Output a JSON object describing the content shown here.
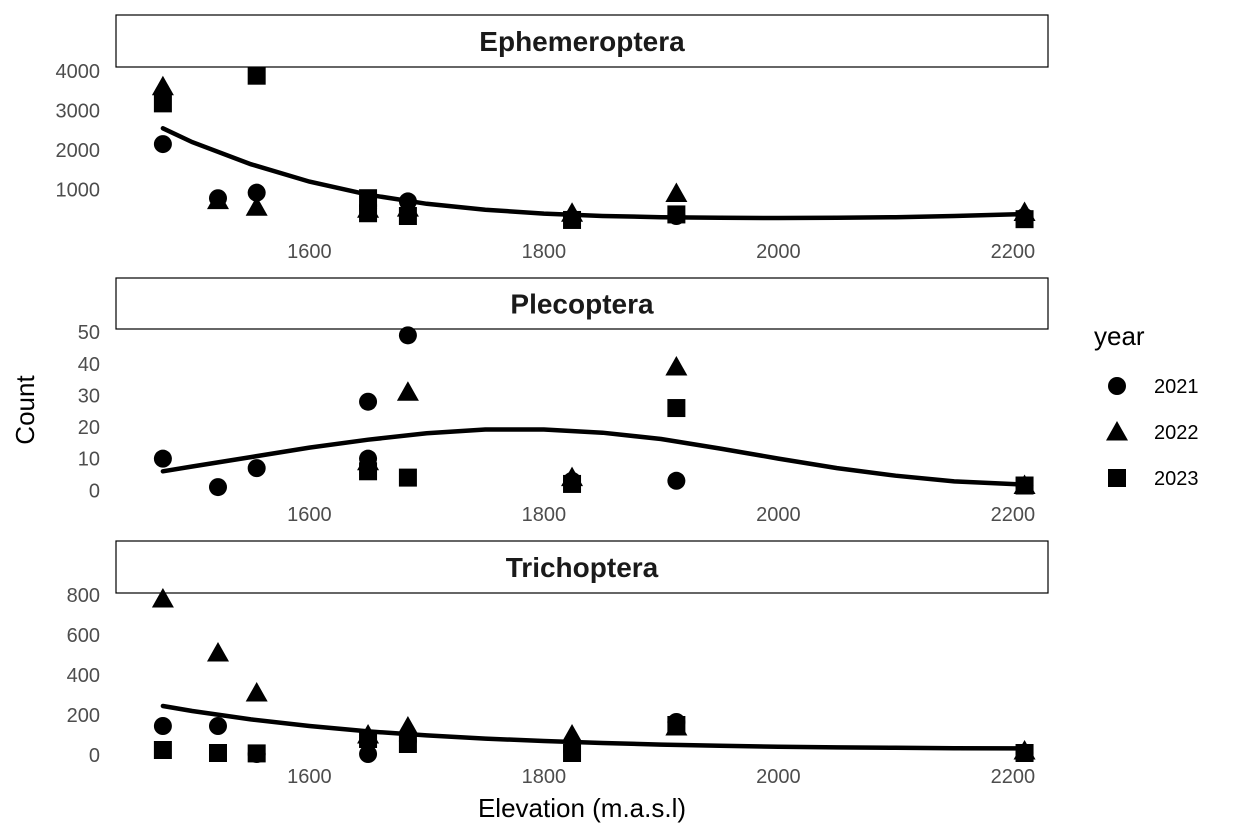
{
  "chart_data": {
    "type": "scatter",
    "xlabel": "Elevation (m.a.s.l)",
    "ylabel": "Count",
    "xlim": [
      1435,
      2230
    ],
    "x_ticks": [
      1600,
      1800,
      2000,
      2200
    ],
    "legend": {
      "title": "year",
      "placement": "right",
      "entries": [
        {
          "label": "2021",
          "shape": "circle"
        },
        {
          "label": "2022",
          "shape": "triangle"
        },
        {
          "label": "2023",
          "shape": "square"
        }
      ]
    },
    "panels": [
      {
        "title": "Ephemeroptera",
        "ylim": [
          -100,
          4100
        ],
        "y_ticks": [
          1000,
          2000,
          3000,
          4000
        ],
        "series": [
          {
            "name": "2021",
            "shape": "circle",
            "points": [
              [
                1475,
                2150
              ],
              [
                1522,
                780
              ],
              [
                1555,
                920
              ],
              [
                1650,
                520
              ],
              [
                1684,
                700
              ],
              [
                1824,
                270
              ],
              [
                1913,
                330
              ],
              [
                2210,
                310
              ]
            ]
          },
          {
            "name": "2022",
            "shape": "triangle",
            "points": [
              [
                1475,
                3600
              ],
              [
                1522,
                720
              ],
              [
                1555,
                550
              ],
              [
                1650,
                500
              ],
              [
                1684,
                530
              ],
              [
                1824,
                400
              ],
              [
                1913,
                900
              ],
              [
                2210,
                420
              ]
            ]
          },
          {
            "name": "2023",
            "shape": "square",
            "points": [
              [
                1475,
                3180
              ],
              [
                1555,
                3880
              ],
              [
                1650,
                780
              ],
              [
                1650,
                400
              ],
              [
                1684,
                330
              ],
              [
                1824,
                230
              ],
              [
                1913,
                370
              ],
              [
                2210,
                250
              ]
            ]
          }
        ],
        "trend": [
          [
            1475,
            2550
          ],
          [
            1500,
            2200
          ],
          [
            1550,
            1640
          ],
          [
            1600,
            1200
          ],
          [
            1650,
            870
          ],
          [
            1700,
            640
          ],
          [
            1750,
            490
          ],
          [
            1800,
            390
          ],
          [
            1850,
            330
          ],
          [
            1900,
            300
          ],
          [
            1950,
            285
          ],
          [
            2000,
            280
          ],
          [
            2050,
            285
          ],
          [
            2100,
            300
          ],
          [
            2150,
            330
          ],
          [
            2210,
            380
          ]
        ]
      },
      {
        "title": "Plecoptera",
        "ylim": [
          -1.5,
          51
        ],
        "y_ticks": [
          0,
          10,
          20,
          30,
          40,
          50
        ],
        "series": [
          {
            "name": "2021",
            "shape": "circle",
            "points": [
              [
                1475,
                10
              ],
              [
                1522,
                1
              ],
              [
                1555,
                7
              ],
              [
                1650,
                28
              ],
              [
                1650,
                10
              ],
              [
                1684,
                49
              ],
              [
                1824,
                3
              ],
              [
                1913,
                3
              ],
              [
                2210,
                1.5
              ]
            ]
          },
          {
            "name": "2022",
            "shape": "triangle",
            "points": [
              [
                1650,
                9
              ],
              [
                1684,
                31
              ],
              [
                1824,
                4
              ],
              [
                1913,
                39
              ],
              [
                2210,
                1.5
              ]
            ]
          },
          {
            "name": "2023",
            "shape": "square",
            "points": [
              [
                1650,
                6
              ],
              [
                1684,
                4
              ],
              [
                1824,
                2
              ],
              [
                1913,
                26
              ],
              [
                2210,
                1.5
              ]
            ]
          }
        ],
        "trend": [
          [
            1475,
            6
          ],
          [
            1500,
            7.5
          ],
          [
            1550,
            10.5
          ],
          [
            1600,
            13.5
          ],
          [
            1650,
            16
          ],
          [
            1700,
            18
          ],
          [
            1750,
            19.2
          ],
          [
            1800,
            19.2
          ],
          [
            1850,
            18.2
          ],
          [
            1900,
            16.2
          ],
          [
            1950,
            13.2
          ],
          [
            2000,
            10
          ],
          [
            2050,
            7
          ],
          [
            2100,
            4.6
          ],
          [
            2150,
            2.8
          ],
          [
            2210,
            1.8
          ]
        ]
      },
      {
        "title": "Trichoptera",
        "ylim": [
          -15,
          810
        ],
        "y_ticks": [
          0,
          200,
          400,
          600,
          800
        ],
        "series": [
          {
            "name": "2021",
            "shape": "circle",
            "points": [
              [
                1475,
                145
              ],
              [
                1522,
                145
              ],
              [
                1555,
                5
              ],
              [
                1650,
                5
              ],
              [
                1684,
                70
              ],
              [
                1824,
                20
              ],
              [
                1913,
                165
              ],
              [
                2210,
                10
              ]
            ]
          },
          {
            "name": "2022",
            "shape": "triangle",
            "points": [
              [
                1475,
                780
              ],
              [
                1522,
                510
              ],
              [
                1555,
                310
              ],
              [
                1650,
                100
              ],
              [
                1684,
                140
              ],
              [
                1824,
                100
              ],
              [
                1913,
                140
              ],
              [
                2210,
                20
              ]
            ]
          },
          {
            "name": "2023",
            "shape": "square",
            "points": [
              [
                1475,
                25
              ],
              [
                1522,
                10
              ],
              [
                1555,
                8
              ],
              [
                1650,
                80
              ],
              [
                1684,
                55
              ],
              [
                1824,
                10
              ],
              [
                1913,
                150
              ],
              [
                2210,
                10
              ]
            ]
          }
        ],
        "trend": [
          [
            1475,
            245
          ],
          [
            1500,
            220
          ],
          [
            1550,
            178
          ],
          [
            1600,
            145
          ],
          [
            1650,
            118
          ],
          [
            1700,
            98
          ],
          [
            1750,
            82
          ],
          [
            1800,
            70
          ],
          [
            1850,
            60
          ],
          [
            1900,
            52
          ],
          [
            1950,
            46
          ],
          [
            2000,
            41
          ],
          [
            2050,
            38
          ],
          [
            2100,
            36
          ],
          [
            2150,
            34
          ],
          [
            2210,
            33
          ]
        ]
      }
    ]
  }
}
